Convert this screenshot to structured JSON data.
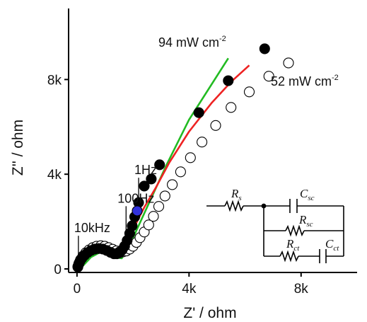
{
  "chart_data": {
    "type": "scatter",
    "title": "",
    "xlabel": "Z' / ohm",
    "ylabel": "Z'' / ohm",
    "xlim": [
      -300,
      10000
    ],
    "ylim": [
      -150,
      11000
    ],
    "x_ticks": [
      {
        "value": 0,
        "label": "0"
      },
      {
        "value": 4000,
        "label": "4k"
      },
      {
        "value": 8000,
        "label": "8k"
      }
    ],
    "y_ticks": [
      {
        "value": 0,
        "label": "0"
      },
      {
        "value": 4000,
        "label": "4k"
      },
      {
        "value": 8000,
        "label": "8k"
      }
    ],
    "grid": false,
    "series": [
      {
        "name": "94 mW cm-2",
        "label_main": "94 mW cm",
        "label_sup": "-2",
        "marker": "filled-circle",
        "color": "#000000",
        "x": [
          30,
          60,
          110,
          180,
          270,
          380,
          500,
          640,
          780,
          920,
          1060,
          1200,
          1320,
          1420,
          1520,
          1610,
          1700,
          1790,
          1880,
          1970,
          2060,
          2200,
          2400,
          2650,
          2950,
          4350,
          5400,
          6700
        ],
        "y": [
          80,
          200,
          330,
          460,
          580,
          690,
          780,
          840,
          860,
          840,
          780,
          700,
          640,
          640,
          680,
          800,
          960,
          1200,
          1500,
          1820,
          2200,
          2800,
          3500,
          3800,
          4400,
          6600,
          7950,
          9300
        ]
      },
      {
        "name": "52 mW cm-2",
        "label_main": "52 mW cm",
        "label_sup": "-2",
        "marker": "open-circle",
        "color": "#000000",
        "x": [
          30,
          70,
          130,
          210,
          310,
          430,
          560,
          700,
          850,
          990,
          1130,
          1270,
          1400,
          1520,
          1640,
          1760,
          1880,
          2000,
          2120,
          2250,
          2400,
          2560,
          2730,
          2920,
          3140,
          3400,
          3700,
          4050,
          4460,
          4950,
          5500,
          6150,
          6850,
          7550
        ],
        "y": [
          100,
          240,
          390,
          540,
          680,
          800,
          900,
          960,
          980,
          960,
          900,
          830,
          760,
          720,
          720,
          760,
          840,
          960,
          1120,
          1320,
          1560,
          1860,
          2220,
          2640,
          3080,
          3560,
          4100,
          4700,
          5360,
          6060,
          6820,
          7480,
          8140,
          8700
        ]
      },
      {
        "name": "highlight",
        "marker": "filled-circle",
        "color": "#3232dc",
        "x": [
          2150
        ],
        "y": [
          2450
        ]
      }
    ],
    "fit_lines": [
      {
        "color": "#22bb22",
        "x": [
          150,
          500,
          900,
          1300,
          1600,
          1900,
          2500,
          3200,
          4000,
          5400
        ],
        "y": [
          50,
          500,
          750,
          500,
          450,
          1050,
          2600,
          4400,
          6300,
          8900
        ]
      },
      {
        "color": "#ee2222",
        "x": [
          1250,
          1450,
          1650,
          1850,
          2100,
          2400,
          2800,
          3300,
          4000,
          4800,
          5500,
          6150
        ],
        "y": [
          650,
          660,
          800,
          1200,
          1900,
          2600,
          3400,
          4500,
          5800,
          7000,
          7900,
          8600
        ]
      }
    ],
    "annotations": [
      {
        "text": "1Hz",
        "x": 2150,
        "y": 4000
      },
      {
        "text": "100Hz",
        "x": 1550,
        "y": 2800
      },
      {
        "text": "10kHz",
        "x": 0,
        "y": 1550
      }
    ],
    "circuit": {
      "elements": [
        {
          "main": "R",
          "sub": "s"
        },
        {
          "main": "C",
          "sub": "sc"
        },
        {
          "main": "R",
          "sub": "sc"
        },
        {
          "main": "R",
          "sub": "ct"
        },
        {
          "main": "C",
          "sub": "ct"
        }
      ]
    }
  }
}
